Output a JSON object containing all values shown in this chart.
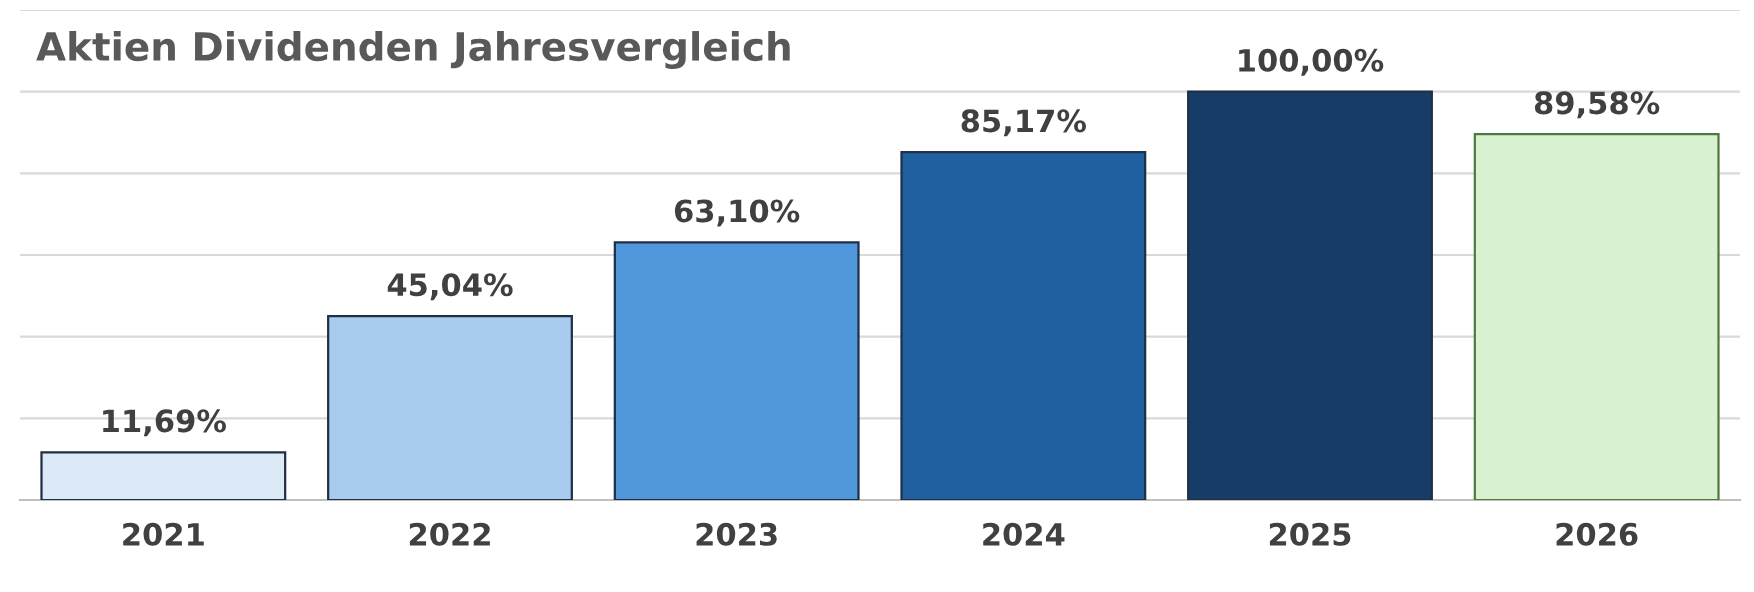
{
  "chart_data": {
    "type": "bar",
    "title": "Aktien Dividenden Jahresvergleich",
    "categories": [
      "2021",
      "2022",
      "2023",
      "2024",
      "2025",
      "2026"
    ],
    "values": [
      11.69,
      45.04,
      63.1,
      85.17,
      100.0,
      89.58
    ],
    "value_labels": [
      "11,69%",
      "45,04%",
      "63,10%",
      "85,17%",
      "100,00%",
      "89,58%"
    ],
    "colors": [
      "#dce9f7",
      "#a9cbee",
      "#4f96da",
      "#2160a0",
      "#173d66",
      "#d8f2d0"
    ],
    "ylim": [
      0,
      120
    ],
    "yticks": [
      {
        "value": 0,
        "label": null
      },
      {
        "value": 20,
        "label": null
      },
      {
        "value": 40,
        "label": null
      },
      {
        "value": 60,
        "label": null
      },
      {
        "value": 80,
        "label": null
      },
      {
        "value": 100,
        "label": null
      },
      {
        "value": 120,
        "label": null
      }
    ],
    "tick_labels": "x",
    "grid": "y",
    "legend": false
  }
}
